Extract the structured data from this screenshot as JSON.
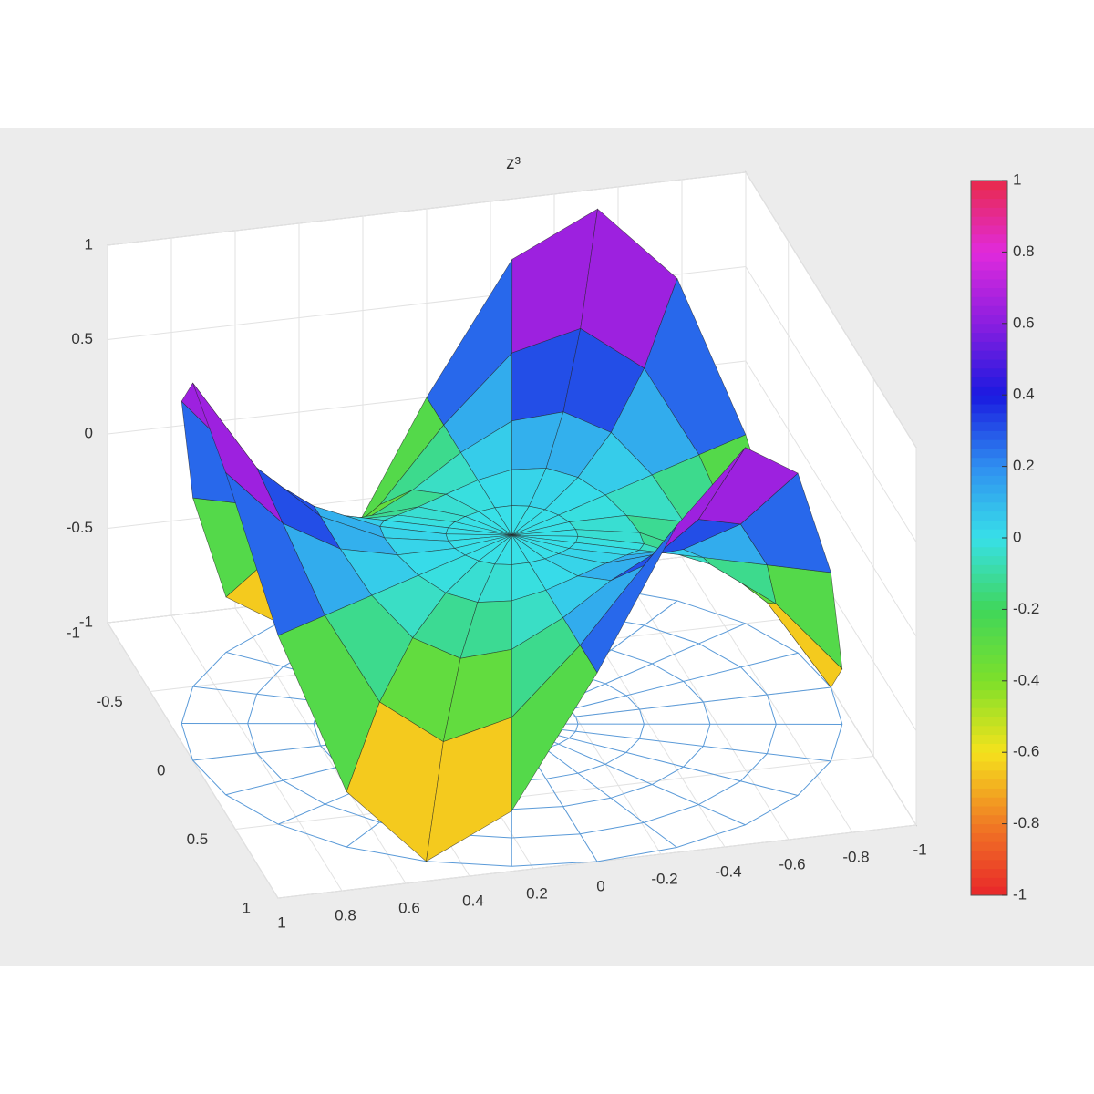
{
  "chart_data": {
    "type": "surface",
    "title": "z³",
    "radii": [
      0,
      0.2,
      0.4,
      0.6,
      0.8,
      1
    ],
    "theta": [
      0,
      15,
      30,
      45,
      60,
      75,
      90,
      105,
      120,
      135,
      150,
      165,
      180,
      195,
      210,
      225,
      240,
      255,
      270,
      285,
      300,
      315,
      330,
      345
    ],
    "z": [
      [
        0,
        0,
        0,
        0,
        0,
        0,
        0,
        0,
        0,
        0,
        0,
        0,
        0,
        0,
        0,
        0,
        0,
        0,
        0,
        0,
        0,
        0,
        0,
        0
      ],
      [
        0,
        -0.0057,
        -0.008,
        -0.0057,
        0,
        0.0057,
        0.008,
        0.0057,
        0,
        -0.0057,
        -0.008,
        -0.0057,
        0,
        0.0057,
        0.008,
        0.0057,
        0,
        -0.0057,
        -0.008,
        -0.0057,
        0,
        0.0057,
        0.008,
        0.0057
      ],
      [
        0,
        -0.0453,
        -0.064,
        -0.0453,
        0,
        0.0453,
        0.064,
        0.0453,
        0,
        -0.0453,
        -0.064,
        -0.0453,
        0,
        0.0453,
        0.064,
        0.0453,
        0,
        -0.0453,
        -0.064,
        -0.0453,
        0,
        0.0453,
        0.064,
        0.0453
      ],
      [
        0,
        -0.1527,
        -0.216,
        -0.1527,
        0,
        0.1527,
        0.216,
        0.1527,
        0,
        -0.1527,
        -0.216,
        -0.1527,
        0,
        0.1527,
        0.216,
        0.1527,
        0,
        -0.1527,
        -0.216,
        -0.1527,
        0,
        0.1527,
        0.216,
        0.1527
      ],
      [
        0,
        -0.362,
        -0.512,
        -0.362,
        0,
        0.362,
        0.512,
        0.362,
        0,
        -0.362,
        -0.512,
        -0.362,
        0,
        0.362,
        0.512,
        0.362,
        0,
        -0.362,
        -0.512,
        -0.362,
        0,
        0.362,
        0.512,
        0.362
      ],
      [
        0,
        -0.707,
        -1,
        -0.707,
        0,
        0.707,
        1,
        0.707,
        0,
        -0.707,
        -1,
        -0.707,
        0,
        0.707,
        1,
        0.707,
        0,
        -0.707,
        -1,
        -0.707,
        0,
        0.707,
        1,
        0.707
      ]
    ],
    "xlim": [
      -1,
      1
    ],
    "ylim": [
      -1,
      1
    ],
    "zlim": [
      -1,
      1
    ],
    "xticks": [
      -1,
      -0.5,
      0,
      0.5,
      1
    ],
    "yticks": [
      1,
      0.8,
      0.6,
      0.4,
      0.2,
      0,
      -0.2,
      -0.4,
      -0.6,
      -0.8,
      -1
    ],
    "zticks": [
      -1,
      -0.5,
      0,
      0.5,
      1
    ],
    "clim": [
      -1,
      1
    ],
    "cticks": [
      1,
      0.8,
      0.6,
      0.4,
      0.2,
      0,
      -0.2,
      -0.4,
      -0.6,
      -0.8,
      -1
    ],
    "colormap": [
      "#e8262a",
      "#f07a24",
      "#f5e21c",
      "#7ee02a",
      "#3fd65a",
      "#38e0e8",
      "#2f8ff0",
      "#1a1ae0",
      "#8a1ee0",
      "#e02adc",
      "#e82a4a"
    ],
    "grid": true
  }
}
